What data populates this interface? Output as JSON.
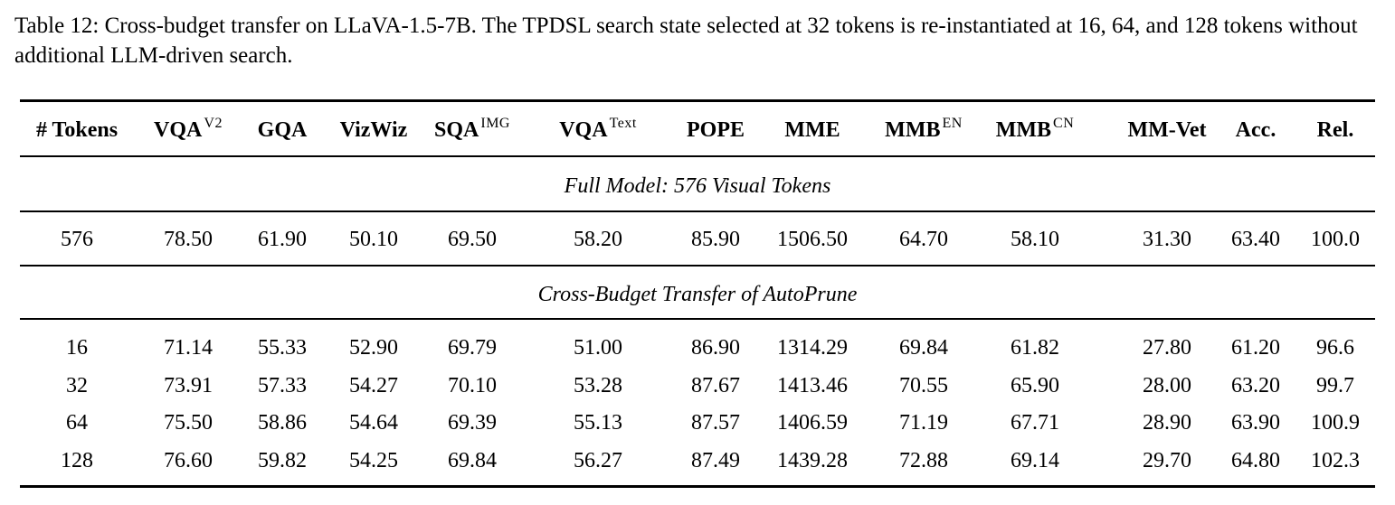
{
  "caption": {
    "prefix": "Table 12: Cross-budget transfer on LLaVA-1.5-7B. The TPDSL search state selected at 32 tokens is re-instantiated at 16, 64, and 128 tokens without additional LLM-driven search."
  },
  "table": {
    "headers": [
      {
        "label": "# Tokens",
        "sup": ""
      },
      {
        "label": "VQA",
        "sup": "V2"
      },
      {
        "label": "GQA",
        "sup": ""
      },
      {
        "label": "VizWiz",
        "sup": ""
      },
      {
        "label": "SQA",
        "sup": "IMG"
      },
      {
        "label": "VQA",
        "sup": "Text"
      },
      {
        "label": "POPE",
        "sup": ""
      },
      {
        "label": "MME",
        "sup": ""
      },
      {
        "label": "MMB",
        "sup": "EN"
      },
      {
        "label": "MMB",
        "sup": "CN"
      },
      {
        "label": "MM-Vet",
        "sup": ""
      },
      {
        "label": "Acc.",
        "sup": ""
      },
      {
        "label": "Rel.",
        "sup": ""
      }
    ],
    "sections": [
      {
        "title": "Full Model: 576 Visual Tokens",
        "rows": [
          [
            "576",
            "78.50",
            "61.90",
            "50.10",
            "69.50",
            "58.20",
            "85.90",
            "1506.50",
            "64.70",
            "58.10",
            "31.30",
            "63.40",
            "100.0"
          ]
        ]
      },
      {
        "title": "Cross-Budget Transfer of AutoPrune",
        "rows": [
          [
            "16",
            "71.14",
            "55.33",
            "52.90",
            "69.79",
            "51.00",
            "86.90",
            "1314.29",
            "69.84",
            "61.82",
            "27.80",
            "61.20",
            "96.6"
          ],
          [
            "32",
            "73.91",
            "57.33",
            "54.27",
            "70.10",
            "53.28",
            "87.67",
            "1413.46",
            "70.55",
            "65.90",
            "28.00",
            "63.20",
            "99.7"
          ],
          [
            "64",
            "75.50",
            "58.86",
            "54.64",
            "69.39",
            "55.13",
            "87.57",
            "1406.59",
            "71.19",
            "67.71",
            "28.90",
            "63.90",
            "100.9"
          ],
          [
            "128",
            "76.60",
            "59.82",
            "54.25",
            "69.84",
            "56.27",
            "87.49",
            "1439.28",
            "72.88",
            "69.14",
            "29.70",
            "64.80",
            "102.3"
          ]
        ]
      }
    ]
  }
}
